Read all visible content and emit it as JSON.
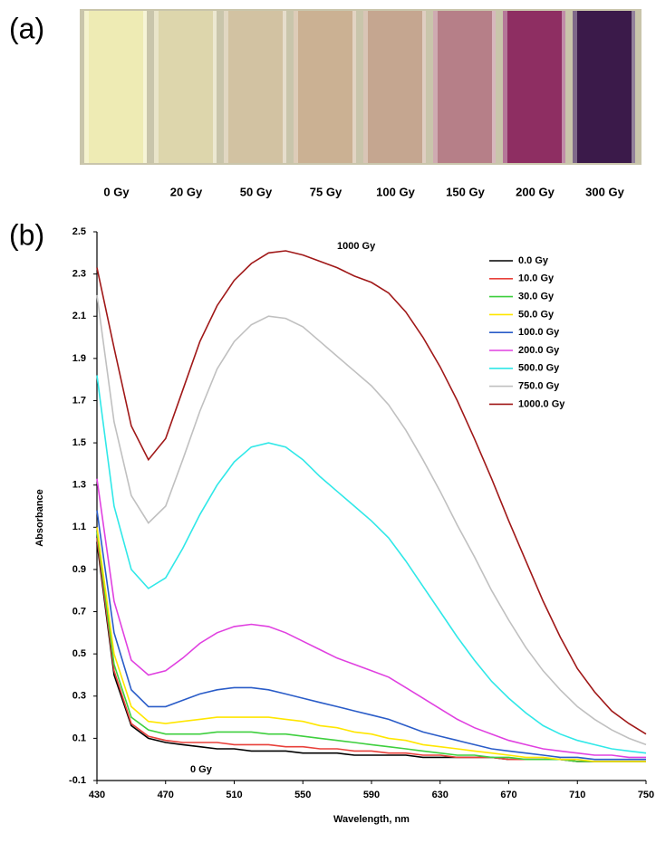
{
  "panel_a": {
    "label": "(a)",
    "samples": [
      "0 Gy",
      "20 Gy",
      "50 Gy",
      "75 Gy",
      "100 Gy",
      "150 Gy",
      "200 Gy",
      "300 Gy"
    ],
    "vial_colors": [
      "#eeebb4",
      "#ddd6ac",
      "#d2c2a2",
      "#cbb193",
      "#c5a690",
      "#b67f88",
      "#8e2e62",
      "#3b1a4a"
    ]
  },
  "chart_data": {
    "type": "line",
    "panel_label": "(b)",
    "x_label": "Wavelength, nm",
    "y_label": "Absorbance",
    "x": [
      430,
      440,
      450,
      460,
      470,
      480,
      490,
      500,
      510,
      520,
      530,
      540,
      550,
      560,
      570,
      580,
      590,
      600,
      610,
      620,
      630,
      640,
      650,
      660,
      670,
      680,
      690,
      700,
      710,
      720,
      730,
      740,
      750
    ],
    "xlim": [
      430,
      750
    ],
    "xticks": [
      430,
      470,
      510,
      550,
      590,
      630,
      670,
      710,
      750
    ],
    "ylim": [
      -0.1,
      2.5
    ],
    "yticks": [
      -0.1,
      0.1,
      0.3,
      0.5,
      0.7,
      0.9,
      1.1,
      1.3,
      1.5,
      1.7,
      1.9,
      2.1,
      2.3,
      2.5
    ],
    "legend": "upper right",
    "annotations": [
      "1000 Gy",
      "0 Gy"
    ],
    "series": [
      {
        "name": "0.0 Gy",
        "color": "#000000",
        "values": [
          1.03,
          0.4,
          0.16,
          0.1,
          0.08,
          0.07,
          0.06,
          0.05,
          0.05,
          0.04,
          0.04,
          0.04,
          0.03,
          0.03,
          0.03,
          0.02,
          0.02,
          0.02,
          0.02,
          0.01,
          0.01,
          0.01,
          0.01,
          0.01,
          0.0,
          0.0,
          0.0,
          0.0,
          -0.01,
          -0.01,
          -0.01,
          -0.01,
          -0.01
        ]
      },
      {
        "name": "10.0 Gy",
        "color": "#e8403a",
        "values": [
          1.05,
          0.42,
          0.17,
          0.11,
          0.09,
          0.08,
          0.08,
          0.08,
          0.07,
          0.07,
          0.07,
          0.06,
          0.06,
          0.05,
          0.05,
          0.04,
          0.04,
          0.03,
          0.03,
          0.02,
          0.02,
          0.01,
          0.01,
          0.01,
          0.0,
          0.0,
          0.0,
          0.0,
          -0.01,
          -0.01,
          -0.01,
          -0.01,
          -0.01
        ]
      },
      {
        "name": "30.0 Gy",
        "color": "#3ecf3e",
        "values": [
          1.08,
          0.45,
          0.2,
          0.14,
          0.12,
          0.12,
          0.12,
          0.13,
          0.13,
          0.13,
          0.12,
          0.12,
          0.11,
          0.1,
          0.09,
          0.08,
          0.07,
          0.06,
          0.05,
          0.04,
          0.03,
          0.02,
          0.02,
          0.01,
          0.01,
          0.0,
          0.0,
          0.0,
          -0.01,
          -0.01,
          -0.01,
          -0.01,
          -0.01
        ]
      },
      {
        "name": "50.0 Gy",
        "color": "#ffe600",
        "values": [
          1.1,
          0.5,
          0.25,
          0.18,
          0.17,
          0.18,
          0.19,
          0.2,
          0.2,
          0.2,
          0.2,
          0.19,
          0.18,
          0.16,
          0.15,
          0.13,
          0.12,
          0.1,
          0.09,
          0.07,
          0.06,
          0.05,
          0.04,
          0.03,
          0.02,
          0.01,
          0.01,
          0.0,
          0.0,
          -0.01,
          -0.01,
          -0.01,
          -0.01
        ]
      },
      {
        "name": "100.0 Gy",
        "color": "#2a5cc8",
        "values": [
          1.18,
          0.6,
          0.33,
          0.25,
          0.25,
          0.28,
          0.31,
          0.33,
          0.34,
          0.34,
          0.33,
          0.31,
          0.29,
          0.27,
          0.25,
          0.23,
          0.21,
          0.19,
          0.16,
          0.13,
          0.11,
          0.09,
          0.07,
          0.05,
          0.04,
          0.03,
          0.02,
          0.01,
          0.01,
          0.0,
          0.0,
          0.0,
          0.0
        ]
      },
      {
        "name": "200.0 Gy",
        "color": "#e040e0",
        "values": [
          1.33,
          0.75,
          0.47,
          0.4,
          0.42,
          0.48,
          0.55,
          0.6,
          0.63,
          0.64,
          0.63,
          0.6,
          0.56,
          0.52,
          0.48,
          0.45,
          0.42,
          0.39,
          0.34,
          0.29,
          0.24,
          0.19,
          0.15,
          0.12,
          0.09,
          0.07,
          0.05,
          0.04,
          0.03,
          0.02,
          0.02,
          0.01,
          0.01
        ]
      },
      {
        "name": "500.0 Gy",
        "color": "#30e8e8",
        "values": [
          1.82,
          1.2,
          0.9,
          0.81,
          0.86,
          1.0,
          1.16,
          1.3,
          1.41,
          1.48,
          1.5,
          1.48,
          1.42,
          1.34,
          1.27,
          1.2,
          1.13,
          1.05,
          0.94,
          0.82,
          0.7,
          0.58,
          0.47,
          0.37,
          0.29,
          0.22,
          0.16,
          0.12,
          0.09,
          0.07,
          0.05,
          0.04,
          0.03
        ]
      },
      {
        "name": "750.0 Gy",
        "color": "#c0c0c0",
        "values": [
          2.2,
          1.6,
          1.25,
          1.12,
          1.2,
          1.42,
          1.65,
          1.85,
          1.98,
          2.06,
          2.1,
          2.09,
          2.05,
          1.98,
          1.91,
          1.84,
          1.77,
          1.68,
          1.56,
          1.42,
          1.27,
          1.11,
          0.96,
          0.8,
          0.66,
          0.53,
          0.42,
          0.33,
          0.25,
          0.19,
          0.14,
          0.1,
          0.07
        ]
      },
      {
        "name": "1000.0 Gy",
        "color": "#a01818",
        "values": [
          2.33,
          1.95,
          1.58,
          1.42,
          1.52,
          1.75,
          1.98,
          2.15,
          2.27,
          2.35,
          2.4,
          2.41,
          2.39,
          2.36,
          2.33,
          2.29,
          2.26,
          2.21,
          2.12,
          2.0,
          1.86,
          1.7,
          1.52,
          1.33,
          1.13,
          0.94,
          0.75,
          0.58,
          0.43,
          0.32,
          0.23,
          0.17,
          0.12
        ]
      }
    ]
  }
}
